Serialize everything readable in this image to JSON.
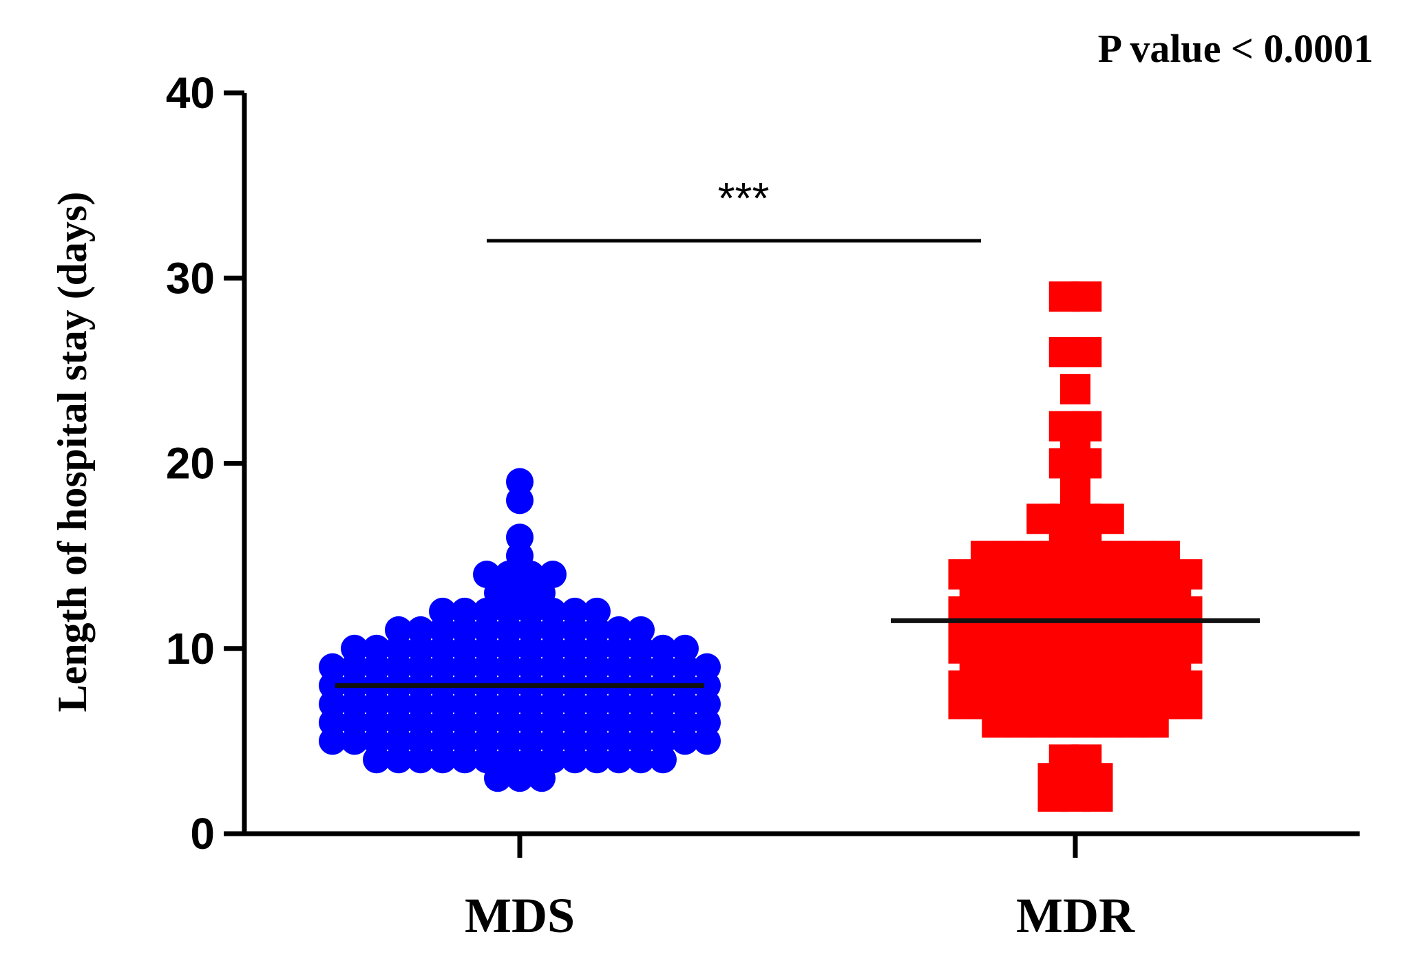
{
  "chart_data": {
    "type": "scatter",
    "ylabel": "Length of hospital stay (days)",
    "ylim": [
      0,
      40
    ],
    "yticks": [
      0,
      10,
      20,
      30,
      40
    ],
    "categories": [
      "MDS",
      "MDR"
    ],
    "annotation": "P value < 0.0001",
    "significance": "***",
    "series": [
      {
        "category": "MDS",
        "marker": "circle",
        "color": "#0000ff",
        "mean": 8,
        "values": [
          19,
          18,
          16,
          15,
          14,
          14,
          14,
          14,
          13,
          13,
          13,
          12,
          12,
          12,
          12,
          12,
          12,
          12,
          12,
          11,
          11,
          11,
          11,
          11,
          11,
          11,
          11,
          11,
          11,
          11,
          11,
          10,
          10,
          10,
          10,
          10,
          10,
          10,
          10,
          10,
          10,
          10,
          10,
          10,
          10,
          10,
          10,
          9,
          9,
          9,
          9,
          9,
          9,
          9,
          9,
          9,
          9,
          9,
          9,
          9,
          9,
          9,
          9,
          9,
          9,
          8,
          8,
          8,
          8,
          8,
          8,
          8,
          8,
          8,
          8,
          8,
          8,
          8,
          8,
          8,
          8,
          8,
          8,
          7,
          7,
          7,
          7,
          7,
          7,
          7,
          7,
          7,
          7,
          7,
          7,
          7,
          7,
          7,
          7,
          7,
          7,
          6,
          6,
          6,
          6,
          6,
          6,
          6,
          6,
          6,
          6,
          6,
          6,
          6,
          6,
          6,
          6,
          6,
          6,
          5,
          5,
          5,
          5,
          5,
          5,
          5,
          5,
          5,
          5,
          5,
          5,
          5,
          5,
          5,
          5,
          5,
          5,
          4,
          4,
          4,
          4,
          4,
          4,
          4,
          4,
          4,
          4,
          4,
          4,
          4,
          4,
          3,
          3,
          3
        ]
      },
      {
        "category": "MDR",
        "marker": "square",
        "color": "#ff0000",
        "mean": 11.5,
        "values": [
          29,
          29,
          26,
          26,
          24,
          22,
          22,
          21,
          20,
          20,
          19,
          18,
          17,
          17,
          17,
          17,
          16,
          16,
          15,
          15,
          15,
          15,
          15,
          15,
          15,
          15,
          15,
          14,
          14,
          14,
          14,
          14,
          14,
          14,
          14,
          14,
          14,
          14,
          13,
          13,
          13,
          13,
          13,
          13,
          13,
          13,
          13,
          13,
          12,
          12,
          12,
          12,
          12,
          12,
          12,
          12,
          12,
          12,
          12,
          11,
          11,
          11,
          11,
          11,
          11,
          11,
          11,
          11,
          11,
          11,
          10,
          10,
          10,
          10,
          10,
          10,
          10,
          10,
          10,
          10,
          10,
          9,
          9,
          9,
          9,
          9,
          9,
          9,
          9,
          9,
          9,
          8,
          8,
          8,
          8,
          8,
          8,
          8,
          8,
          8,
          8,
          8,
          7,
          7,
          7,
          7,
          7,
          7,
          7,
          7,
          7,
          7,
          7,
          6,
          6,
          6,
          6,
          6,
          6,
          6,
          6,
          4,
          4,
          3,
          3,
          3,
          2,
          2,
          2
        ]
      }
    ]
  }
}
